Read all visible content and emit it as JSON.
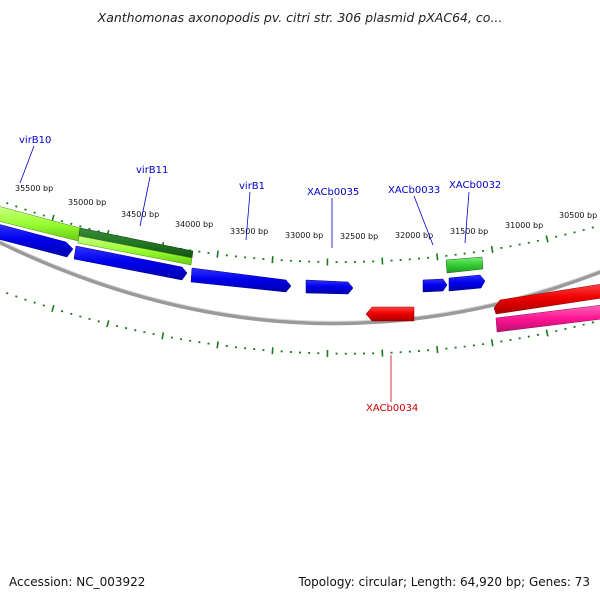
{
  "title": "Xanthomonas axonopodis pv. citri str. 306 plasmid pXAC64, co...",
  "footer": {
    "accession": "Accession: NC_003922",
    "topology": "Topology: circular; Length: 64,920 bp; Genes: 73"
  },
  "scale_ticks": [
    {
      "label": "35500 bp"
    },
    {
      "label": "35000 bp"
    },
    {
      "label": "34500 bp"
    },
    {
      "label": "34000 bp"
    },
    {
      "label": "33500 bp"
    },
    {
      "label": "33000 bp"
    },
    {
      "label": "32500 bp"
    },
    {
      "label": "32000 bp"
    },
    {
      "label": "31500 bp"
    },
    {
      "label": "31000 bp"
    },
    {
      "label": "30500 bp"
    }
  ],
  "gene_labels": [
    {
      "label": "virB10",
      "color": "#0000cc"
    },
    {
      "label": "virB11",
      "color": "#0000cc"
    },
    {
      "label": "virB1",
      "color": "#0000cc"
    },
    {
      "label": "XACb0035",
      "color": "#0000cc"
    },
    {
      "label": "XACb0033",
      "color": "#0000cc"
    },
    {
      "label": "XACb0032",
      "color": "#0000cc"
    },
    {
      "label": "XACb0034",
      "color": "#cc0000"
    }
  ],
  "colors": {
    "forward_strand": "#0000ee",
    "reverse_strand": "#ee0000",
    "light_green": "#99ff33",
    "dark_green": "#227722",
    "green": "#33cc33",
    "magenta": "#ff1493",
    "tick": "#1a7a1a",
    "backbone": "#888888"
  }
}
